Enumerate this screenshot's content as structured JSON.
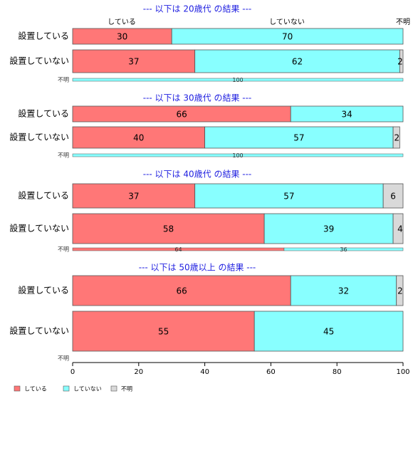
{
  "colors": {
    "doing": "#ff7777",
    "not_doing": "#88ffff",
    "unknown": "#d9d9d9",
    "title": "#1f1fe0"
  },
  "header_labels": [
    "している",
    "していない",
    "不明"
  ],
  "chart_data": {
    "type": "bar",
    "orientation": "horizontal",
    "stacked": true,
    "xlim": [
      0,
      100
    ],
    "xticks": [
      0,
      20,
      40,
      60,
      80,
      100
    ],
    "grid": false,
    "legend_position": "bottom-left",
    "legend": [
      "している",
      "していない",
      "不明"
    ],
    "panels": [
      {
        "title": "--- 以下は 20歳代 の結果 ---",
        "rows": [
          {
            "label": "設置している",
            "values": [
              30,
              70,
              0
            ]
          },
          {
            "label": "設置していない",
            "values": [
              37,
              62,
              2
            ]
          },
          {
            "label": "不明",
            "values": [
              0,
              100,
              0
            ]
          }
        ]
      },
      {
        "title": "--- 以下は 30歳代 の結果 ---",
        "rows": [
          {
            "label": "設置している",
            "values": [
              66,
              34,
              0
            ]
          },
          {
            "label": "設置していない",
            "values": [
              40,
              57,
              2
            ]
          },
          {
            "label": "不明",
            "values": [
              0,
              100,
              0
            ]
          }
        ]
      },
      {
        "title": "--- 以下は 40歳代 の結果 ---",
        "rows": [
          {
            "label": "設置している",
            "values": [
              37,
              57,
              6
            ]
          },
          {
            "label": "設置していない",
            "values": [
              58,
              39,
              4
            ]
          },
          {
            "label": "不明",
            "values": [
              64,
              36,
              0
            ]
          }
        ]
      },
      {
        "title": "--- 以下は 50歳以上 の結果 ---",
        "rows": [
          {
            "label": "設置している",
            "values": [
              66,
              32,
              2
            ]
          },
          {
            "label": "設置していない",
            "values": [
              55,
              45,
              0
            ]
          },
          {
            "label": "不明",
            "values": [
              0,
              0,
              0
            ]
          }
        ]
      }
    ]
  }
}
